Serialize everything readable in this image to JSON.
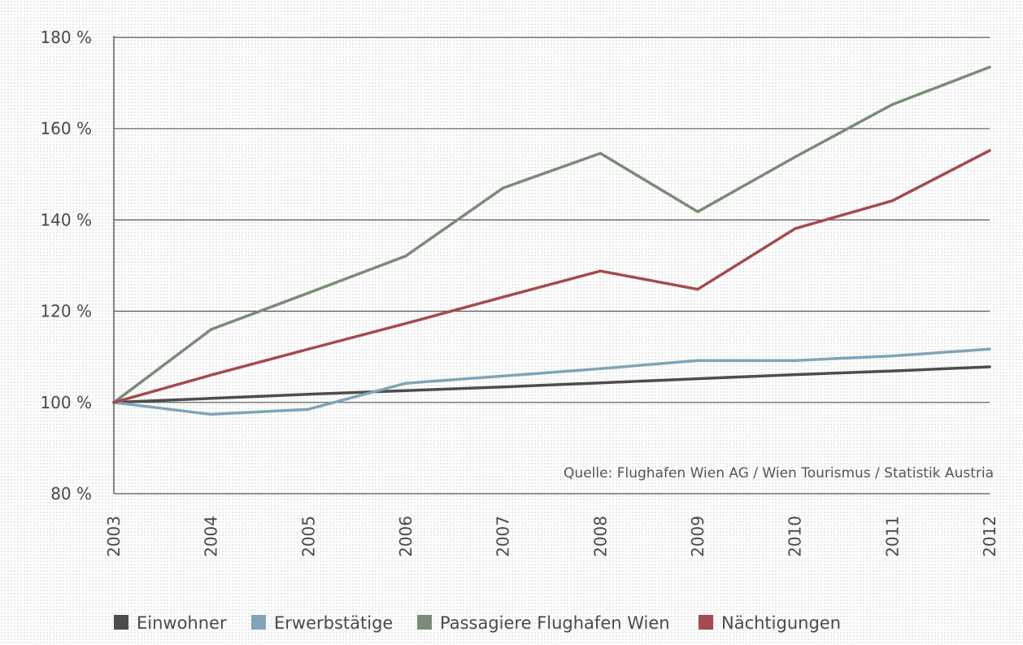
{
  "chart_data": {
    "type": "line",
    "x": [
      "2003",
      "2004",
      "2005",
      "2006",
      "2007",
      "2008",
      "2009",
      "2010",
      "2011",
      "2012"
    ],
    "yticks": [
      "80 %",
      "100 %",
      "120 %",
      "140 %",
      "160 %",
      "180 %"
    ],
    "ylim": [
      80,
      180
    ],
    "grid": true,
    "legend_position": "bottom",
    "source": "Quelle: Flughafen Wien AG / Wien Tourismus / Statistik Austria",
    "series": [
      {
        "name": "Einwohner",
        "color": "#4d4d4d",
        "values": [
          100,
          100.9,
          101.8,
          102.6,
          103.4,
          104.3,
          105.2,
          106.1,
          106.9,
          107.8
        ]
      },
      {
        "name": "Erwerbstätige",
        "color": "#7fa5b7",
        "values": [
          100,
          97.4,
          98.5,
          104.2,
          105.8,
          107.4,
          109.2,
          109.2,
          110.2,
          111.7
        ]
      },
      {
        "name": "Passagiere Flughafen Wien",
        "color": "#7a8b78",
        "values": [
          100,
          116,
          124,
          132.1,
          147,
          154.6,
          141.8,
          153.8,
          165.3,
          173.5
        ]
      },
      {
        "name": "Nächtigungen",
        "color": "#a34b4e",
        "values": [
          100,
          106,
          111.7,
          117.3,
          123.1,
          128.8,
          124.8,
          138.1,
          144.2,
          155.2
        ]
      }
    ]
  }
}
